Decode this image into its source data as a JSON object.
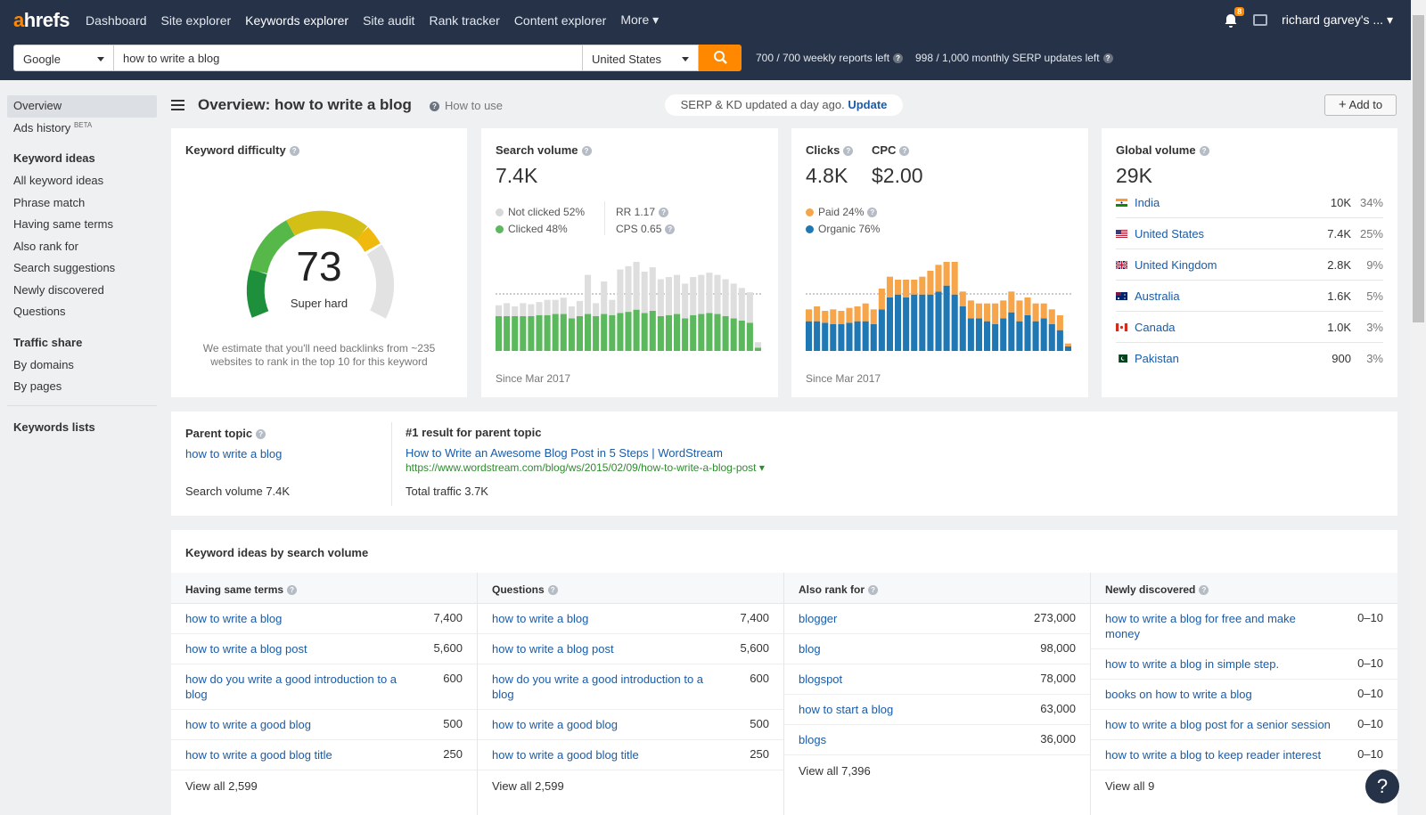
{
  "app": {
    "logo_a": "a",
    "logo_rest": "hrefs"
  },
  "nav": {
    "items": [
      "Dashboard",
      "Site explorer",
      "Keywords explorer",
      "Site audit",
      "Rank tracker",
      "Content explorer",
      "More"
    ],
    "notification_count": "8",
    "user": "richard garvey's ..."
  },
  "search": {
    "engine": "Google",
    "query": "how to write a blog",
    "country": "United States",
    "weekly": "700 / 700 weekly reports left",
    "monthly": "998 / 1,000 monthly SERP updates left"
  },
  "sidebar": {
    "overview": "Overview",
    "ads_history": "Ads history",
    "beta": "BETA",
    "keyword_ideas_head": "Keyword ideas",
    "keyword_ideas": [
      "All keyword ideas",
      "Phrase match",
      "Having same terms",
      "Also rank for",
      "Search suggestions",
      "Newly discovered",
      "Questions"
    ],
    "traffic_head": "Traffic share",
    "traffic": [
      "By domains",
      "By pages"
    ],
    "lists": "Keywords lists"
  },
  "header": {
    "title": "Overview: how to write a blog",
    "how_to": "How to use",
    "serp_text": "SERP & KD updated a day ago.",
    "serp_update": "Update",
    "add_to": "Add to"
  },
  "kd": {
    "title": "Keyword difficulty",
    "value": "73",
    "label": "Super hard",
    "note": "We estimate that you'll need backlinks from ~235 websites to rank in the top 10 for this keyword"
  },
  "sv": {
    "title": "Search volume",
    "value": "7.4K",
    "not_clicked": "Not clicked 52%",
    "clicked": "Clicked 48%",
    "rr": "RR 1.17",
    "cps": "CPS 0.65",
    "since": "Since Mar 2017"
  },
  "clicks": {
    "title": "Clicks",
    "value": "4.8K",
    "cpc_title": "CPC",
    "cpc_value": "$2.00",
    "paid": "Paid 24%",
    "organic": "Organic 76%",
    "since": "Since Mar 2017"
  },
  "global": {
    "title": "Global volume",
    "value": "29K",
    "countries": [
      {
        "name": "India",
        "vol": "10K",
        "pct": "34%"
      },
      {
        "name": "United States",
        "vol": "7.4K",
        "pct": "25%"
      },
      {
        "name": "United Kingdom",
        "vol": "2.8K",
        "pct": "9%"
      },
      {
        "name": "Australia",
        "vol": "1.6K",
        "pct": "5%"
      },
      {
        "name": "Canada",
        "vol": "1.0K",
        "pct": "3%"
      },
      {
        "name": "Pakistan",
        "vol": "900",
        "pct": "3%"
      }
    ]
  },
  "parent": {
    "title": "Parent topic",
    "topic": "how to write a blog",
    "volume": "Search volume 7.4K",
    "result_title": "#1 result for parent topic",
    "result_link": "How to Write an Awesome Blog Post in 5 Steps | WordStream",
    "result_url": "https://www.wordstream.com/blog/ws/2015/02/09/how-to-write-a-blog-post",
    "traffic": "Total traffic 3.7K"
  },
  "ideas": {
    "title": "Keyword ideas by search volume",
    "columns": [
      {
        "head": "Having same terms",
        "rows": [
          {
            "kw": "how to write a blog",
            "v": "7,400"
          },
          {
            "kw": "how to write a blog post",
            "v": "5,600"
          },
          {
            "kw": "how do you write a good introduction to a blog",
            "v": "600"
          },
          {
            "kw": "how to write a good blog",
            "v": "500"
          },
          {
            "kw": "how to write a good blog title",
            "v": "250"
          }
        ],
        "view_all": "View all 2,599"
      },
      {
        "head": "Questions",
        "rows": [
          {
            "kw": "how to write a blog",
            "v": "7,400"
          },
          {
            "kw": "how to write a blog post",
            "v": "5,600"
          },
          {
            "kw": "how do you write a good introduction to a blog",
            "v": "600"
          },
          {
            "kw": "how to write a good blog",
            "v": "500"
          },
          {
            "kw": "how to write a good blog title",
            "v": "250"
          }
        ],
        "view_all": "View all 2,599"
      },
      {
        "head": "Also rank for",
        "rows": [
          {
            "kw": "blogger",
            "v": "273,000"
          },
          {
            "kw": "blog",
            "v": "98,000"
          },
          {
            "kw": "blogspot",
            "v": "78,000"
          },
          {
            "kw": "how to start a blog",
            "v": "63,000"
          },
          {
            "kw": "blogs",
            "v": "36,000"
          }
        ],
        "view_all": "View all 7,396"
      },
      {
        "head": "Newly discovered",
        "rows": [
          {
            "kw": "how to write a blog for free and make money",
            "v": "0–10"
          },
          {
            "kw": "how to write a blog in simple step.",
            "v": "0–10"
          },
          {
            "kw": "books on how to write a blog",
            "v": "0–10"
          },
          {
            "kw": "how to write a blog post for a senior session",
            "v": "0–10"
          },
          {
            "kw": "how to write a blog to keep reader interest",
            "v": "0–10"
          }
        ],
        "view_all": "View all 9"
      }
    ]
  },
  "help": "?",
  "colors": {
    "nav_bg": "#253248",
    "accent": "#ff8800",
    "link": "#1a5ca8",
    "green": "#5cb85c",
    "blue": "#1f78b4",
    "orange": "#f6a54a"
  },
  "chart_data": [
    {
      "type": "bar",
      "name": "search-volume-history",
      "series": [
        {
          "name": "Clicked",
          "values": [
            32,
            32,
            32,
            32,
            32,
            33,
            33,
            34,
            34,
            30,
            32,
            34,
            32,
            34,
            33,
            35,
            36,
            38,
            35,
            37,
            32,
            33,
            34,
            30,
            33,
            34,
            35,
            34,
            32,
            30,
            28,
            26,
            3
          ]
        },
        {
          "name": "Not clicked",
          "values": [
            10,
            12,
            9,
            12,
            11,
            12,
            14,
            13,
            15,
            11,
            14,
            36,
            12,
            30,
            14,
            40,
            42,
            44,
            38,
            40,
            34,
            35,
            36,
            32,
            35,
            36,
            37,
            36,
            34,
            32,
            30,
            28,
            5
          ]
        }
      ]
    },
    {
      "type": "bar",
      "name": "clicks-history",
      "series": [
        {
          "name": "Organic",
          "values": [
            20,
            20,
            19,
            18,
            18,
            19,
            20,
            20,
            18,
            28,
            36,
            38,
            36,
            38,
            38,
            38,
            40,
            44,
            38,
            30,
            22,
            22,
            20,
            18,
            22,
            26,
            20,
            24,
            20,
            22,
            18,
            14,
            3
          ]
        },
        {
          "name": "Paid",
          "values": [
            8,
            10,
            8,
            10,
            9,
            10,
            10,
            12,
            10,
            14,
            14,
            10,
            12,
            10,
            12,
            16,
            18,
            16,
            22,
            10,
            12,
            10,
            12,
            14,
            12,
            14,
            14,
            12,
            12,
            10,
            10,
            10,
            2
          ]
        }
      ]
    }
  ]
}
